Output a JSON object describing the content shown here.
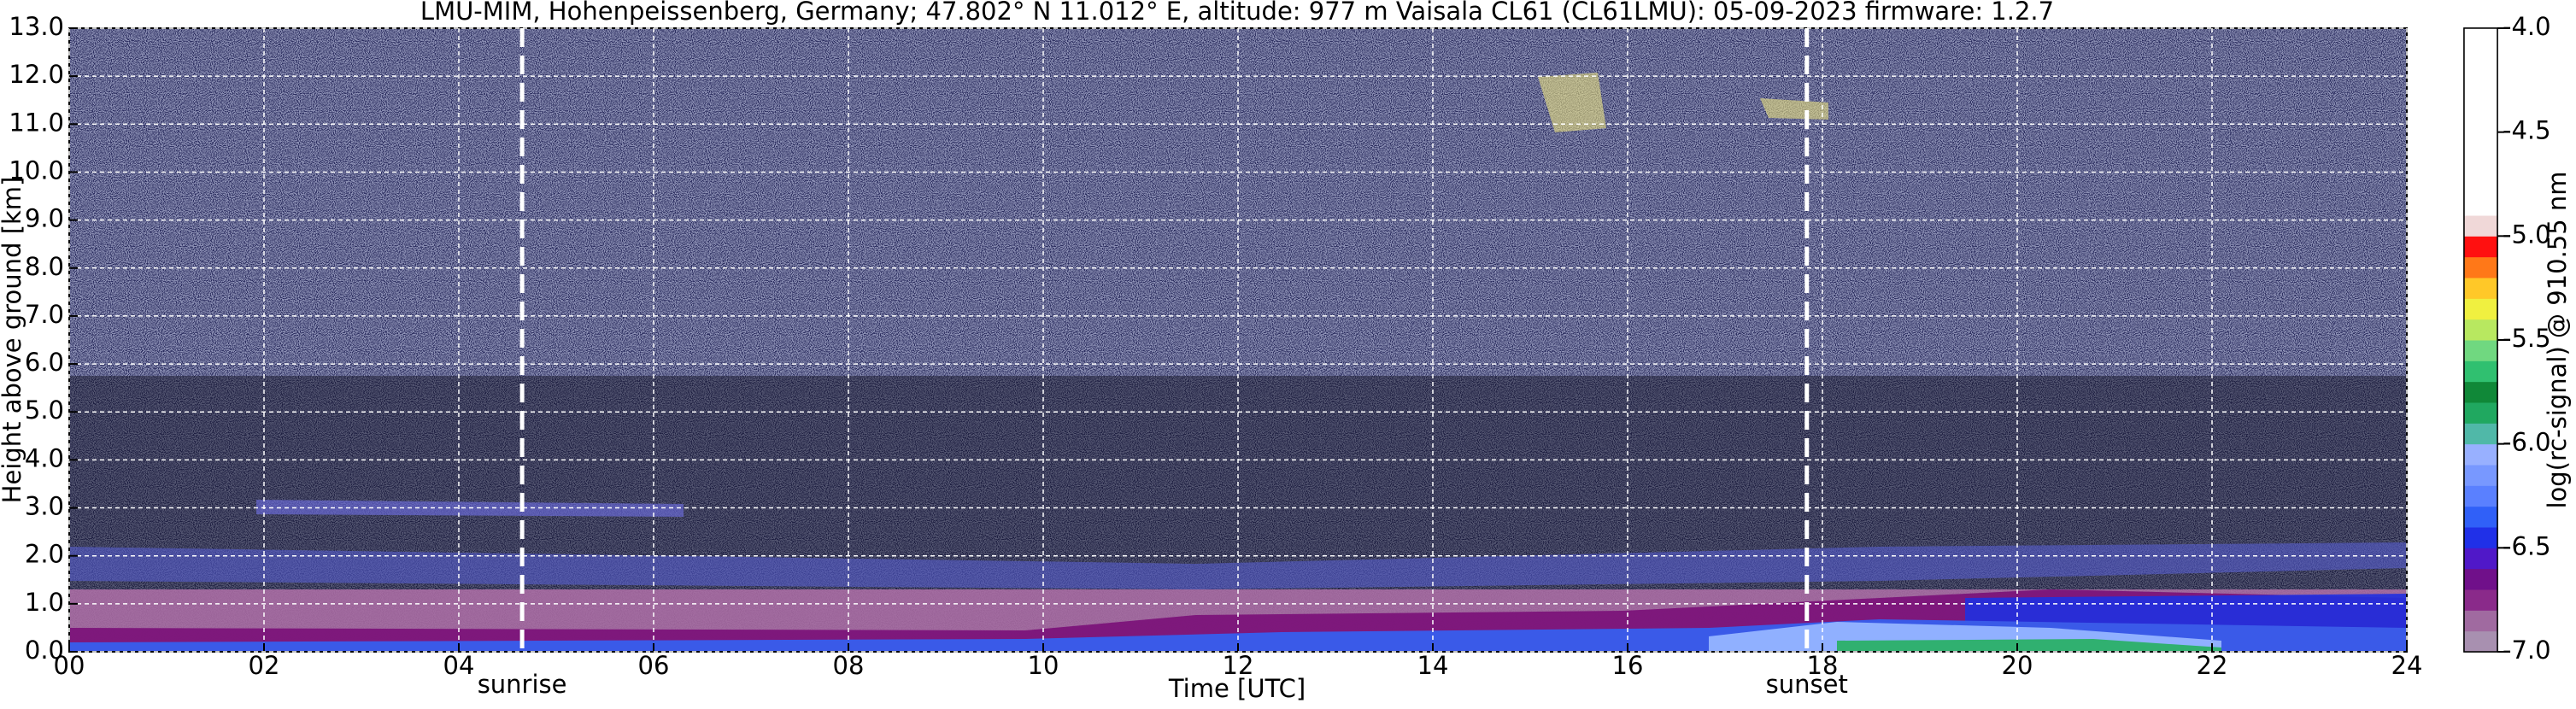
{
  "chart_data": {
    "type": "heatmap",
    "title": "LMU-MIM, Hohenpeissenberg, Germany; 47.802° N 11.012° E, altitude: 977 m    Vaisala CL61 (CL61LMU): 05-09-2023    firmware: 1.2.7",
    "x_label": "Time [UTC]",
    "y_label": "Height above ground [km]",
    "xlim": [
      0,
      24
    ],
    "xticks": [
      {
        "value": 0,
        "label": "00"
      },
      {
        "value": 2,
        "label": "02"
      },
      {
        "value": 4,
        "label": "04"
      },
      {
        "value": 6,
        "label": "06"
      },
      {
        "value": 8,
        "label": "08"
      },
      10,
      12,
      14,
      16,
      18,
      20,
      22,
      24
    ],
    "ylim": [
      0,
      13
    ],
    "yticks": [
      {
        "value": 0,
        "label": "0.0"
      },
      {
        "value": 1,
        "label": "1.0"
      },
      {
        "value": 2,
        "label": "2.0"
      },
      {
        "value": 3,
        "label": "3.0"
      },
      {
        "value": 4,
        "label": "4.0"
      },
      {
        "value": 5,
        "label": "5.0"
      },
      {
        "value": 6,
        "label": "6.0"
      },
      {
        "value": 7,
        "label": "7.0"
      },
      {
        "value": 8,
        "label": "8.0"
      },
      {
        "value": 9,
        "label": "9.0"
      },
      {
        "value": 10,
        "label": "10.0"
      },
      {
        "value": 11,
        "label": "11.0"
      },
      {
        "value": 12,
        "label": "12.0"
      },
      {
        "value": 13,
        "label": "13.0"
      }
    ],
    "grid": true,
    "annotations": [
      {
        "text": "sunrise",
        "x": 4.65
      },
      {
        "text": "sunset",
        "x": 17.84
      }
    ],
    "colorbar": {
      "label": "log(rc-signal) @ 910.55 nm",
      "lim": [
        -7,
        -4
      ],
      "ticks": [
        {
          "value": -4,
          "label": "-4.0"
        },
        {
          "value": -4.5,
          "label": "-4.5"
        },
        {
          "value": -5,
          "label": "-5.0"
        },
        {
          "value": -5.5,
          "label": "-5.5"
        },
        {
          "value": -6,
          "label": "-6.0"
        },
        {
          "value": -6.5,
          "label": "-6.5"
        },
        {
          "value": -7,
          "label": "-7.0"
        }
      ],
      "colors": [
        "#a890b0",
        "#a06aa0",
        "#8a2a8a",
        "#70108a",
        "#5018c8",
        "#2030e8",
        "#3060f8",
        "#5a80ff",
        "#7898ff",
        "#98b0ff",
        "#50b8a8",
        "#20a860",
        "#108838",
        "#30c070",
        "#70d880",
        "#b8e860",
        "#f0f040",
        "#ffc828",
        "#ff7818",
        "#ff1010",
        "#f0d8d8",
        "#ffffff",
        "#ffffff",
        "#ffffff",
        "#ffffff",
        "#ffffff",
        "#ffffff",
        "#ffffff",
        "#ffffff",
        "#ffffff"
      ]
    }
  }
}
